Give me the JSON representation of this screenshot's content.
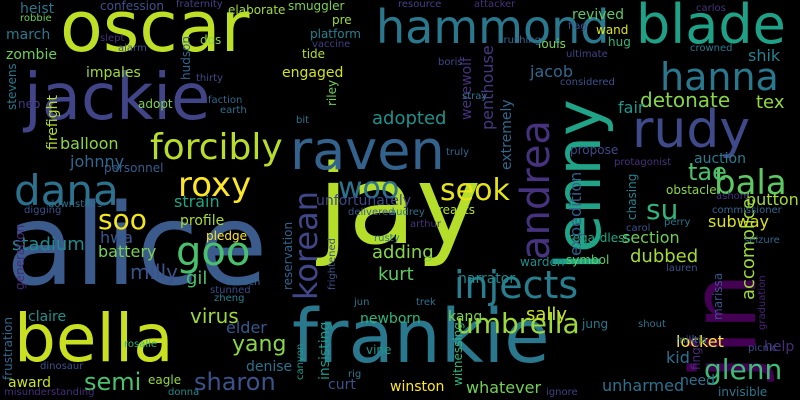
{
  "words": [
    {
      "text": "alice",
      "color": "#3b5b8c"
    },
    {
      "text": "jay",
      "color": "#b5de2b"
    },
    {
      "text": "oscar",
      "color": "#bddf26"
    },
    {
      "text": "jackie",
      "color": "#414487"
    },
    {
      "text": "frankie",
      "color": "#2a788e"
    },
    {
      "text": "bella",
      "color": "#c8e020"
    },
    {
      "text": "raven",
      "color": "#33638d"
    },
    {
      "text": "hammond",
      "color": "#2a788e"
    },
    {
      "text": "blade",
      "color": "#1fa187"
    },
    {
      "text": "lenny",
      "color": "#20a386"
    },
    {
      "text": "jin",
      "color": "#440154"
    },
    {
      "text": "rudy",
      "color": "#3e4a89"
    },
    {
      "text": "hanna",
      "color": "#2a788e"
    },
    {
      "text": "andrea",
      "color": "#46327e"
    },
    {
      "text": "dana",
      "color": "#2c728e"
    },
    {
      "text": "forcibly",
      "color": "#b8de29"
    },
    {
      "text": "roxy",
      "color": "#fde725"
    },
    {
      "text": "goo",
      "color": "#48c16e"
    },
    {
      "text": "bala",
      "color": "#5ec962"
    },
    {
      "text": "injects",
      "color": "#287d8e"
    },
    {
      "text": "korean",
      "color": "#3f4788"
    },
    {
      "text": "woo",
      "color": "#2c728e"
    },
    {
      "text": "seok",
      "color": "#e5e419"
    },
    {
      "text": "soo",
      "color": "#f1e51d"
    },
    {
      "text": "umbrella",
      "color": "#9dd93b"
    },
    {
      "text": "sharon",
      "color": "#3b528b"
    },
    {
      "text": "semi",
      "color": "#4ac16d"
    },
    {
      "text": "glenn",
      "color": "#3dbc74"
    },
    {
      "text": "yang",
      "color": "#8bd646"
    },
    {
      "text": "su",
      "color": "#31b57b"
    },
    {
      "text": "tae",
      "color": "#4ac16d"
    },
    {
      "text": "detonate",
      "color": "#86d549"
    },
    {
      "text": "adopted",
      "color": "#21918c"
    },
    {
      "text": "penthouse",
      "color": "#443a83"
    },
    {
      "text": "jacob",
      "color": "#31688e"
    },
    {
      "text": "shik",
      "color": "#26828e"
    },
    {
      "text": "fair",
      "color": "#1f988b"
    },
    {
      "text": "tex",
      "color": "#95d840"
    },
    {
      "text": "expedition",
      "color": "#34608d"
    },
    {
      "text": "accomplice",
      "color": "#9dd93b"
    },
    {
      "text": "auction",
      "color": "#287d8e"
    },
    {
      "text": "button",
      "color": "#a5db36"
    },
    {
      "text": "subway",
      "color": "#dae319"
    },
    {
      "text": "section",
      "color": "#6ece58"
    },
    {
      "text": "dubbed",
      "color": "#a5db36"
    },
    {
      "text": "adding",
      "color": "#89d548"
    },
    {
      "text": "kurt",
      "color": "#5ec962"
    },
    {
      "text": "sally",
      "color": "#cae11f"
    },
    {
      "text": "virus",
      "color": "#9bd93c"
    },
    {
      "text": "elder",
      "color": "#38588c"
    },
    {
      "text": "milly",
      "color": "#3b528b"
    },
    {
      "text": "gil",
      "color": "#4ac16d"
    },
    {
      "text": "hwa",
      "color": "#38588c"
    },
    {
      "text": "battery",
      "color": "#7ad151"
    },
    {
      "text": "stadium",
      "color": "#23898e"
    },
    {
      "text": "profile",
      "color": "#a8db34"
    },
    {
      "text": "johnny",
      "color": "#31688e"
    },
    {
      "text": "balloon",
      "color": "#8bd646"
    },
    {
      "text": "strain",
      "color": "#20a486"
    },
    {
      "text": "engaged",
      "color": "#d2e21b"
    },
    {
      "text": "impales",
      "color": "#a0da39"
    },
    {
      "text": "march",
      "color": "#2a788e"
    },
    {
      "text": "heist",
      "color": "#2a788e"
    },
    {
      "text": "zombie",
      "color": "#6ece58"
    },
    {
      "text": "stevens",
      "color": "#2a788e"
    },
    {
      "text": "firefight",
      "color": "#b5de2b"
    },
    {
      "text": "neo",
      "color": "#443983"
    },
    {
      "text": "adopt",
      "color": "#7fd34e"
    },
    {
      "text": "claire",
      "color": "#20928c"
    },
    {
      "text": "award",
      "color": "#c8e020"
    },
    {
      "text": "curt",
      "color": "#3b528b"
    },
    {
      "text": "winston",
      "color": "#fde725"
    },
    {
      "text": "whatever",
      "color": "#73d056"
    },
    {
      "text": "unharmed",
      "color": "#2c728e"
    },
    {
      "text": "invisible",
      "color": "#2a788e"
    },
    {
      "text": "help",
      "color": "#472d7b"
    },
    {
      "text": "newborn",
      "color": "#31b57b"
    },
    {
      "text": "kang",
      "color": "#7ad151"
    },
    {
      "text": "narrator",
      "color": "#23898e"
    },
    {
      "text": "warden",
      "color": "#228c8d"
    },
    {
      "text": "denise",
      "color": "#2c728e"
    },
    {
      "text": "locket",
      "color": "#fde725"
    },
    {
      "text": "kid",
      "color": "#2c728e"
    },
    {
      "text": "need",
      "color": "#2c728e"
    },
    {
      "text": "marissa",
      "color": "#3b528b"
    },
    {
      "text": "symbol",
      "color": "#5ec962"
    },
    {
      "text": "jung",
      "color": "#2a788e"
    },
    {
      "text": "pre",
      "color": "#a0da39"
    },
    {
      "text": "platform",
      "color": "#26828e"
    },
    {
      "text": "tide",
      "color": "#b5de2b"
    },
    {
      "text": "riley",
      "color": "#6ece58"
    },
    {
      "text": "werewolf",
      "color": "#46327e"
    },
    {
      "text": "unfortunately",
      "color": "#3e4989"
    },
    {
      "text": "reservation",
      "color": "#32648e"
    },
    {
      "text": "insisting",
      "color": "#1f988b"
    },
    {
      "text": "revived",
      "color": "#5ec962"
    },
    {
      "text": "wand",
      "color": "#dde318"
    },
    {
      "text": "louis",
      "color": "#7fd34e"
    },
    {
      "text": "hug",
      "color": "#35b779"
    },
    {
      "text": "dos",
      "color": "#84d44b"
    },
    {
      "text": "elaborate",
      "color": "#a0da39"
    },
    {
      "text": "smuggler",
      "color": "#7ad151"
    },
    {
      "text": "confession",
      "color": "#3b528b"
    },
    {
      "text": "robbie",
      "color": "#6ece58"
    },
    {
      "text": "hudson",
      "color": "#31688e"
    },
    {
      "text": "fraternity",
      "color": "#414487"
    },
    {
      "text": "extremely",
      "color": "#31688e"
    },
    {
      "text": "propose",
      "color": "#3e4a89"
    },
    {
      "text": "chasing",
      "color": "#26828e"
    },
    {
      "text": "obstacle",
      "color": "#8bd646"
    },
    {
      "text": "personnel",
      "color": "#355f8d"
    },
    {
      "text": "generation",
      "color": "#472a7a"
    },
    {
      "text": "frustration",
      "color": "#31688e"
    },
    {
      "text": "reacts",
      "color": "#b5de2b"
    },
    {
      "text": "regardless",
      "color": "#22a785"
    },
    {
      "text": "frightened",
      "color": "#3b528b"
    },
    {
      "text": "zheng",
      "color": "#26828e"
    },
    {
      "text": "pledge",
      "color": "#fde725"
    },
    {
      "text": "graduation",
      "color": "#482475"
    },
    {
      "text": "finger",
      "color": "#472a7a"
    },
    {
      "text": "militia",
      "color": "#31688e"
    },
    {
      "text": "eagle",
      "color": "#95d840"
    },
    {
      "text": "rosalie",
      "color": "#31b57b"
    },
    {
      "text": "donna",
      "color": "#238a8d"
    },
    {
      "text": "vine",
      "color": "#1f988b"
    },
    {
      "text": "witnessing",
      "color": "#32b67a"
    },
    {
      "text": "seizure",
      "color": "#31688e"
    },
    {
      "text": "carlos",
      "color": "#46327e"
    },
    {
      "text": "crowned",
      "color": "#2a788e"
    },
    {
      "text": "protagonist",
      "color": "#46327e"
    },
    {
      "text": "ultimate",
      "color": "#414487"
    },
    {
      "text": "trek",
      "color": "#2c728e"
    },
    {
      "text": "jun",
      "color": "#2a788e"
    },
    {
      "text": "ignore",
      "color": "#433e85"
    },
    {
      "text": "shout",
      "color": "#2c728e"
    },
    {
      "text": "picnic",
      "color": "#3b528b"
    },
    {
      "text": "canyon",
      "color": "#1f988b"
    },
    {
      "text": "rig",
      "color": "#2a788e"
    },
    {
      "text": "dinosaur",
      "color": "#3b528b"
    },
    {
      "text": "misunderstanding",
      "color": "#472d7b"
    },
    {
      "text": "arthur",
      "color": "#46327e"
    },
    {
      "text": "delivered",
      "color": "#38588c"
    },
    {
      "text": "audrey",
      "color": "#2c728e"
    },
    {
      "text": "breach",
      "color": "#31688e"
    },
    {
      "text": "stunned",
      "color": "#3e4a89"
    },
    {
      "text": "lauren",
      "color": "#3b528b"
    },
    {
      "text": "perry",
      "color": "#2c728e"
    },
    {
      "text": "ashore",
      "color": "#46327e"
    },
    {
      "text": "commissioner",
      "color": "#31688e"
    },
    {
      "text": "carol",
      "color": "#3b528b"
    },
    {
      "text": "downstairs",
      "color": "#2c728e"
    },
    {
      "text": "digging",
      "color": "#3b528b"
    },
    {
      "text": "truly",
      "color": "#31688e"
    },
    {
      "text": "rusty",
      "color": "#2a788e"
    },
    {
      "text": "slept",
      "color": "#46327e"
    },
    {
      "text": "alarm",
      "color": "#3b528b"
    },
    {
      "text": "thirty",
      "color": "#3e4a89"
    },
    {
      "text": "earth",
      "color": "#2c728e"
    },
    {
      "text": "faction",
      "color": "#31688e"
    },
    {
      "text": "bit",
      "color": "#2c728e"
    },
    {
      "text": "resource",
      "color": "#414487"
    },
    {
      "text": "attacker",
      "color": "#46327e"
    },
    {
      "text": "flag",
      "color": "#3b528b"
    },
    {
      "text": "crushing",
      "color": "#31688e"
    },
    {
      "text": "vaccine",
      "color": "#433e85"
    },
    {
      "text": "considered",
      "color": "#3b528b"
    },
    {
      "text": "stray",
      "color": "#2c728e"
    },
    {
      "text": "boris",
      "color": "#3e4a89"
    }
  ]
}
